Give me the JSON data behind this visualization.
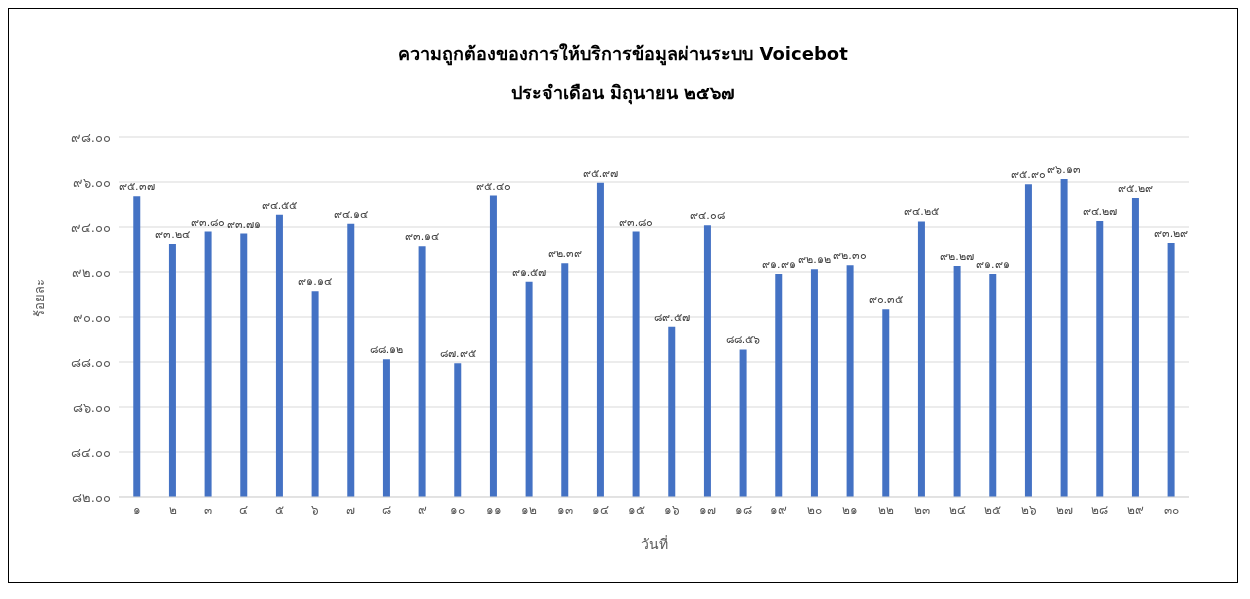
{
  "chart_data": {
    "type": "bar",
    "title": "ความถูกต้องของการให้บริการข้อมูลผ่านระบบ Voicebot",
    "subtitle": "ประจำเดือน มิถุนายน ๒๕๖๗",
    "xlabel": "วันที่",
    "ylabel": "ร้อยละ",
    "categories": [
      "๑",
      "๒",
      "๓",
      "๔",
      "๕",
      "๖",
      "๗",
      "๘",
      "๙",
      "๑๐",
      "๑๑",
      "๑๒",
      "๑๓",
      "๑๔",
      "๑๕",
      "๑๖",
      "๑๗",
      "๑๘",
      "๑๙",
      "๒๐",
      "๒๑",
      "๒๒",
      "๒๓",
      "๒๔",
      "๒๕",
      "๒๖",
      "๒๗",
      "๒๘",
      "๒๙",
      "๓๐"
    ],
    "values": [
      95.37,
      93.24,
      93.8,
      93.71,
      94.55,
      91.14,
      94.14,
      88.12,
      93.14,
      87.95,
      95.4,
      91.57,
      92.39,
      95.97,
      93.8,
      89.57,
      94.08,
      88.56,
      91.91,
      92.12,
      92.3,
      90.35,
      94.25,
      92.27,
      91.91,
      95.9,
      96.13,
      94.27,
      95.29,
      93.29
    ],
    "value_labels": [
      "๙๕.๓๗",
      "๙๓.๒๔",
      "๙๓.๘๐",
      "๙๓.๗๑",
      "๙๔.๕๕",
      "๙๑.๑๔",
      "๙๔.๑๔",
      "๘๘.๑๒",
      "๙๓.๑๔",
      "๘๗.๙๕",
      "๙๕.๔๐",
      "๙๑.๕๗",
      "๙๒.๓๙",
      "๙๕.๙๗",
      "๙๓.๘๐",
      "๘๙.๕๗",
      "๙๔.๐๘",
      "๘๘.๕๖",
      "๙๑.๙๑",
      "๙๒.๑๒",
      "๙๒.๓๐",
      "๙๐.๓๕",
      "๙๔.๒๕",
      "๙๒.๒๗",
      "๙๑.๙๑",
      "๙๕.๙๐",
      "๙๖.๑๓",
      "๙๔.๒๗",
      "๙๕.๒๙",
      "๙๓.๒๙"
    ],
    "color": "#4472c4",
    "ylim": [
      82,
      98
    ],
    "yticks": [
      {
        "value": 82,
        "label": "๘๒.๐๐"
      },
      {
        "value": 84,
        "label": "๘๔.๐๐"
      },
      {
        "value": 86,
        "label": "๘๖.๐๐"
      },
      {
        "value": 88,
        "label": "๘๘.๐๐"
      },
      {
        "value": 90,
        "label": "๙๐.๐๐"
      },
      {
        "value": 92,
        "label": "๙๒.๐๐"
      },
      {
        "value": 94,
        "label": "๙๔.๐๐"
      },
      {
        "value": 96,
        "label": "๙๖.๐๐"
      },
      {
        "value": 98,
        "label": "๙๘.๐๐"
      }
    ],
    "grid": "y",
    "legend": false
  }
}
